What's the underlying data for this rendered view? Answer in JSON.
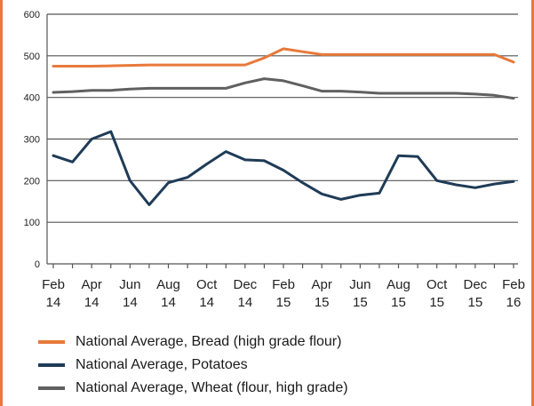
{
  "chart_data": {
    "type": "line",
    "title": "",
    "xlabel": "",
    "ylabel": "",
    "ylim": [
      0,
      600
    ],
    "yticks": [
      0,
      100,
      200,
      300,
      400,
      500,
      600
    ],
    "grid": true,
    "legend_position": "bottom",
    "x": [
      "Feb 14",
      "Mar 14",
      "Apr 14",
      "May 14",
      "Jun 14",
      "Jul 14",
      "Aug 14",
      "Sep 14",
      "Oct 14",
      "Nov 14",
      "Dec 14",
      "Jan 15",
      "Feb 15",
      "Mar 15",
      "Apr 15",
      "May 15",
      "Jun 15",
      "Jul 15",
      "Aug 15",
      "Sep 15",
      "Oct 15",
      "Nov 15",
      "Dec 15",
      "Jan 16",
      "Feb 16"
    ],
    "x_tick_labels": [
      {
        "month": "Feb",
        "year": "14"
      },
      {
        "month": "Apr",
        "year": "14"
      },
      {
        "month": "Jun",
        "year": "14"
      },
      {
        "month": "Aug",
        "year": "14"
      },
      {
        "month": "Oct",
        "year": "14"
      },
      {
        "month": "Dec",
        "year": "14"
      },
      {
        "month": "Feb",
        "year": "15"
      },
      {
        "month": "Apr",
        "year": "15"
      },
      {
        "month": "Jun",
        "year": "15"
      },
      {
        "month": "Aug",
        "year": "15"
      },
      {
        "month": "Oct",
        "year": "15"
      },
      {
        "month": "Dec",
        "year": "15"
      },
      {
        "month": "Feb",
        "year": "16"
      }
    ],
    "series": [
      {
        "name": "National Average, Bread (high grade flour)",
        "color": "#e8793a",
        "values": [
          475,
          475,
          475,
          476,
          477,
          478,
          478,
          478,
          478,
          478,
          478,
          495,
          517,
          510,
          503,
          503,
          503,
          503,
          503,
          503,
          503,
          503,
          503,
          503,
          485
        ]
      },
      {
        "name": "National Average, Potatoes",
        "color": "#1f3b57",
        "values": [
          260,
          245,
          300,
          318,
          200,
          142,
          195,
          208,
          240,
          270,
          250,
          248,
          225,
          195,
          168,
          155,
          165,
          170,
          260,
          258,
          200,
          190,
          183,
          192,
          198
        ]
      },
      {
        "name": "National Average, Wheat (flour, high grade)",
        "color": "#606060",
        "values": [
          412,
          414,
          417,
          417,
          420,
          422,
          422,
          422,
          422,
          422,
          435,
          445,
          440,
          428,
          415,
          415,
          413,
          410,
          410,
          410,
          410,
          410,
          408,
          405,
          398
        ]
      }
    ]
  }
}
